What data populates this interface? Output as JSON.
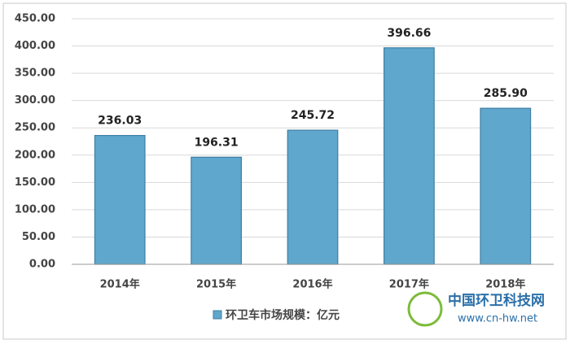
{
  "chart_data": {
    "type": "bar",
    "categories": [
      "2014年",
      "2015年",
      "2016年",
      "2017年",
      "2018年"
    ],
    "series": [
      {
        "name": "环卫车市场规模：亿元",
        "color": "#5fa7cc",
        "values": [
          236.03,
          196.31,
          245.72,
          396.66,
          285.9
        ],
        "value_labels": [
          "236.03",
          "196.31",
          "245.72",
          "396.66",
          "285.90"
        ]
      }
    ],
    "ylim": [
      0,
      450
    ],
    "yticks": [
      {
        "value": 0,
        "label": "0.00"
      },
      {
        "value": 50,
        "label": "50.00"
      },
      {
        "value": 100,
        "label": "100.00"
      },
      {
        "value": 150,
        "label": "150.00"
      },
      {
        "value": 200,
        "label": "200.00"
      },
      {
        "value": 250,
        "label": "250.00"
      },
      {
        "value": 300,
        "label": "300.00"
      },
      {
        "value": 350,
        "label": "350.00"
      },
      {
        "value": 400,
        "label": "400.00"
      },
      {
        "value": 450,
        "label": "450.00"
      }
    ],
    "grid": true,
    "legend": "bottom",
    "watermark": {
      "title": "中国环卫科技网",
      "url": "www.cn-hw.net"
    }
  }
}
